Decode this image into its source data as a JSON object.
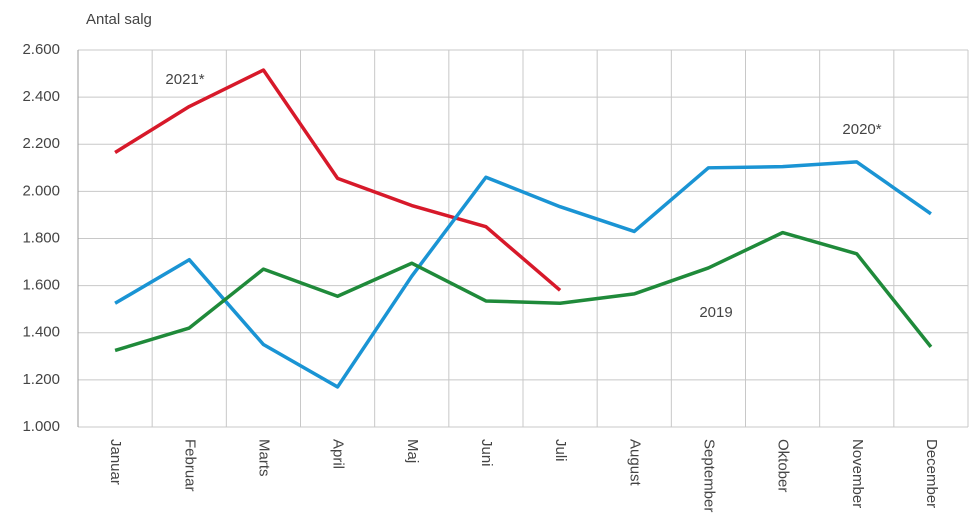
{
  "chart_data": {
    "type": "line",
    "y_label": "Antal salg",
    "categories": [
      "Januar",
      "Februar",
      "Marts",
      "April",
      "Maj",
      "Juni",
      "Juli",
      "August",
      "September",
      "Oktober",
      "November",
      "December"
    ],
    "series": [
      {
        "name": "2021*",
        "color": "#d7192a",
        "values": [
          2165,
          2360,
          2515,
          2055,
          1940,
          1850,
          1580,
          null,
          null,
          null,
          null,
          null
        ]
      },
      {
        "name": "2020*",
        "color": "#1a94d4",
        "values": [
          1525,
          1710,
          1350,
          1170,
          1640,
          2060,
          1935,
          1830,
          2100,
          2105,
          2125,
          1905
        ]
      },
      {
        "name": "2019",
        "color": "#1f8a3a",
        "values": [
          1325,
          1420,
          1670,
          1555,
          1695,
          1535,
          1525,
          1565,
          1675,
          1825,
          1735,
          1340
        ]
      }
    ],
    "ylim": [
      1000,
      2600
    ],
    "yticks": [
      {
        "value": 1000,
        "label": "1.000"
      },
      {
        "value": 1200,
        "label": "1.200"
      },
      {
        "value": 1400,
        "label": "1.400"
      },
      {
        "value": 1600,
        "label": "1.600"
      },
      {
        "value": 1800,
        "label": "1.800"
      },
      {
        "value": 2000,
        "label": "2.000"
      },
      {
        "value": 2200,
        "label": "2.200"
      },
      {
        "value": 2400,
        "label": "2.400"
      },
      {
        "value": 2600,
        "label": "2.600"
      }
    ],
    "grid": true
  }
}
